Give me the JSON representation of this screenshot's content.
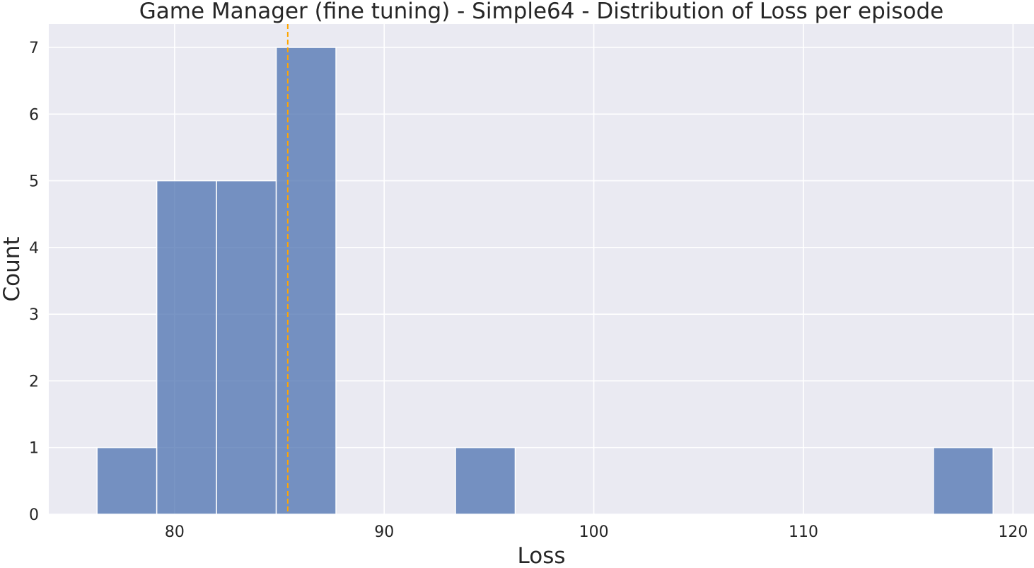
{
  "chart_data": {
    "type": "bar",
    "subtype": "histogram",
    "title": "Game Manager (fine tuning) - Simple64 - Distribution of Loss per episode",
    "xlabel": "Loss",
    "ylabel": "Count",
    "xlim": [
      74.0,
      121.0
    ],
    "ylim": [
      0,
      7.35
    ],
    "xticks": [
      80,
      90,
      100,
      110,
      120
    ],
    "yticks": [
      0,
      1,
      2,
      3,
      4,
      5,
      6,
      7
    ],
    "bin_edges": [
      76.3,
      79.15,
      82.0,
      84.85,
      87.7,
      90.55,
      93.4,
      96.25,
      99.1,
      101.95,
      104.8,
      107.65,
      110.5,
      113.35,
      116.2,
      119.05
    ],
    "counts": [
      1,
      5,
      5,
      7,
      0,
      0,
      1,
      0,
      0,
      0,
      0,
      0,
      0,
      0,
      1
    ],
    "mean_line": {
      "value": 85.4,
      "style": "dashed"
    },
    "grid": true,
    "legend": "none",
    "colors": {
      "background": "#eaeaf2",
      "grid": "#ffffff",
      "bar_fill": "#4c72b0",
      "bar_opacity": 0.75,
      "bar_edge": "#ffffff",
      "mean_line": "#ffa500",
      "text": "#262626"
    }
  }
}
